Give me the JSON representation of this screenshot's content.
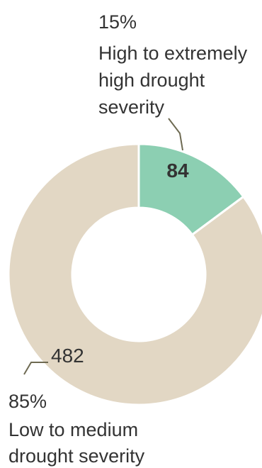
{
  "chart_data": {
    "type": "pie",
    "variant": "donut",
    "slices": [
      {
        "value": 84,
        "percent": "15%",
        "label_lines": [
          "High to extremely",
          "high drought",
          "severity"
        ],
        "color": "#8ccfb2"
      },
      {
        "value": 482,
        "percent": "85%",
        "label_lines": [
          "Low to medium",
          "drought severity"
        ],
        "color": "#e2d7c4"
      }
    ],
    "leader_color": "#6e6a52"
  }
}
